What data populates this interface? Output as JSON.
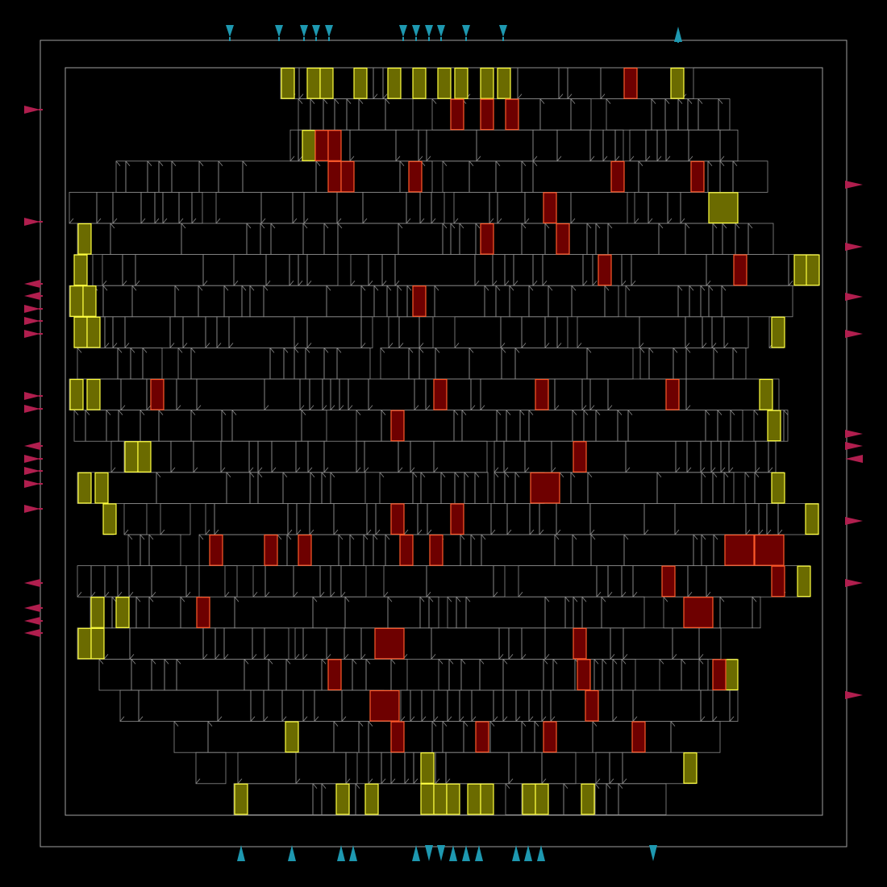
{
  "colors": {
    "background": "#000000",
    "die_outline": "#a0a0a0",
    "core_outline": "#a0a0a0",
    "cell_outline": "#8c8c8c",
    "cell_notch": "#8c8c8c",
    "highlight_yellow_fill": "#6b6b00",
    "highlight_yellow_stroke": "#ffff40",
    "highlight_red_fill": "#6e0000",
    "highlight_red_stroke": "#ff5a2a",
    "pin_horizontal": "#b01e4e",
    "pin_vertical": "#1e98b0"
  },
  "pins": {
    "top": [
      "down",
      "down",
      "down",
      "down",
      "down",
      "down",
      "down",
      "down",
      "down",
      "down",
      "down",
      "up"
    ],
    "bottom": [
      "up",
      "up",
      "up",
      "up",
      "up",
      "down",
      "down",
      "up",
      "up",
      "up",
      "up",
      "up",
      "up",
      "down"
    ],
    "left": [
      "right",
      "right",
      "left",
      "left",
      "right",
      "right",
      "right",
      "right",
      "right",
      "left",
      "right",
      "right",
      "right",
      "right",
      "left",
      "left"
    ],
    "right": [
      "right",
      "right",
      "right",
      "right",
      "right",
      "right",
      "left",
      "right",
      "right",
      "right"
    ]
  },
  "rows": {
    "count": 24
  }
}
